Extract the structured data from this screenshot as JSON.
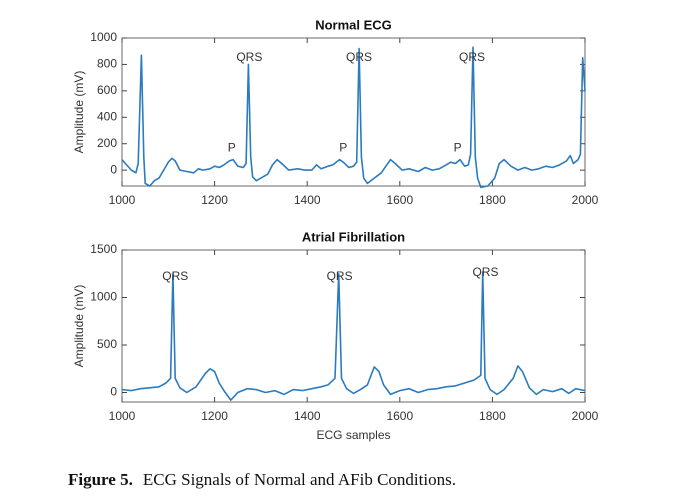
{
  "chart_data": [
    {
      "type": "line",
      "title": "Normal ECG",
      "ylabel": "Amplitude (mV)",
      "color": "#2a7bbf",
      "x": [
        1000,
        1010,
        1020,
        1030,
        1035,
        1042,
        1047,
        1050,
        1060,
        1070,
        1080,
        1090,
        1100,
        1108,
        1115,
        1125,
        1140,
        1155,
        1165,
        1175,
        1190,
        1200,
        1210,
        1220,
        1232,
        1240,
        1250,
        1262,
        1268,
        1273,
        1278,
        1282,
        1290,
        1300,
        1315,
        1325,
        1335,
        1345,
        1360,
        1380,
        1395,
        1410,
        1420,
        1430,
        1445,
        1455,
        1470,
        1478,
        1490,
        1500,
        1507,
        1512,
        1517,
        1522,
        1530,
        1545,
        1560,
        1570,
        1580,
        1590,
        1605,
        1620,
        1640,
        1655,
        1670,
        1685,
        1700,
        1710,
        1720,
        1730,
        1740,
        1748,
        1753,
        1758,
        1763,
        1768,
        1775,
        1790,
        1805,
        1815,
        1825,
        1840,
        1855,
        1870,
        1885,
        1900,
        1915,
        1930,
        1945,
        1960,
        1968,
        1975,
        1985,
        1990,
        1995,
        2000
      ],
      "values": [
        80,
        40,
        0,
        -20,
        50,
        870,
        100,
        -100,
        -120,
        -80,
        -60,
        0,
        60,
        90,
        70,
        0,
        -10,
        -20,
        10,
        0,
        10,
        30,
        20,
        40,
        70,
        80,
        30,
        20,
        50,
        800,
        100,
        -50,
        -80,
        -60,
        -30,
        40,
        80,
        50,
        0,
        10,
        0,
        0,
        40,
        10,
        30,
        40,
        80,
        60,
        20,
        30,
        60,
        920,
        100,
        -60,
        -100,
        -60,
        -20,
        30,
        80,
        50,
        0,
        10,
        -10,
        20,
        0,
        10,
        40,
        60,
        50,
        80,
        30,
        40,
        120,
        930,
        100,
        -60,
        -130,
        -120,
        -60,
        50,
        80,
        30,
        0,
        20,
        0,
        10,
        30,
        20,
        40,
        70,
        110,
        50,
        80,
        120,
        850,
        600
      ],
      "xlim": [
        1000,
        2000
      ],
      "xticks": [
        1000,
        1200,
        1400,
        1600,
        1800,
        2000
      ],
      "ylim": [
        -120,
        1000
      ],
      "yticks": [
        0,
        200,
        400,
        600,
        800,
        1000
      ],
      "annotations": [
        {
          "text": "QRS",
          "x": 1275,
          "y": 850
        },
        {
          "text": "QRS",
          "x": 1512,
          "y": 850
        },
        {
          "text": "QRS",
          "x": 1756,
          "y": 850
        },
        {
          "text": "P",
          "x": 1237,
          "y": 165
        },
        {
          "text": "P",
          "x": 1478,
          "y": 165
        },
        {
          "text": "P",
          "x": 1725,
          "y": 165
        }
      ]
    },
    {
      "type": "line",
      "title": "Atrial Fibrillation",
      "ylabel": "Amplitude (mV)",
      "xlabel": "ECG samples",
      "color": "#2a7bbf",
      "x": [
        1000,
        1020,
        1040,
        1060,
        1080,
        1095,
        1105,
        1110,
        1115,
        1125,
        1140,
        1160,
        1180,
        1190,
        1200,
        1210,
        1220,
        1235,
        1250,
        1270,
        1290,
        1310,
        1330,
        1350,
        1370,
        1390,
        1410,
        1430,
        1445,
        1460,
        1468,
        1474,
        1485,
        1500,
        1515,
        1530,
        1545,
        1555,
        1565,
        1580,
        1600,
        1620,
        1640,
        1660,
        1680,
        1700,
        1720,
        1740,
        1760,
        1775,
        1779,
        1784,
        1795,
        1810,
        1825,
        1845,
        1855,
        1865,
        1880,
        1895,
        1910,
        1930,
        1950,
        1965,
        1980,
        2000
      ],
      "values": [
        30,
        20,
        40,
        50,
        60,
        100,
        150,
        1250,
        150,
        50,
        0,
        60,
        200,
        250,
        220,
        100,
        20,
        -80,
        0,
        40,
        30,
        0,
        20,
        -20,
        30,
        20,
        40,
        60,
        80,
        150,
        1250,
        150,
        40,
        -10,
        30,
        80,
        270,
        220,
        80,
        -20,
        20,
        40,
        0,
        30,
        40,
        60,
        70,
        100,
        130,
        180,
        1270,
        150,
        30,
        -20,
        30,
        150,
        280,
        220,
        50,
        -20,
        30,
        10,
        40,
        -10,
        40,
        20
      ],
      "xlim": [
        1000,
        2000
      ],
      "xticks": [
        1000,
        1200,
        1400,
        1600,
        1800,
        2000
      ],
      "ylim": [
        -100,
        1500
      ],
      "yticks": [
        0,
        500,
        1000,
        1500
      ],
      "annotations": [
        {
          "text": "QRS",
          "x": 1115,
          "y": 1220
        },
        {
          "text": "QRS",
          "x": 1470,
          "y": 1220
        },
        {
          "text": "QRS",
          "x": 1785,
          "y": 1260
        }
      ]
    }
  ],
  "caption": {
    "label": "Figure 5.",
    "text": "ECG Signals of Normal and AFib Conditions."
  }
}
